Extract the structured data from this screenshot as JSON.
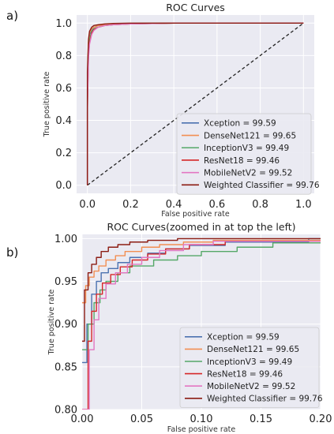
{
  "panels": [
    {
      "label": "a)"
    },
    {
      "label": "b)"
    }
  ],
  "legend_entries": [
    {
      "name": "Xception",
      "value": "99.59",
      "color": "#4c72b0"
    },
    {
      "name": "DenseNet121",
      "value": "99.65",
      "color": "#f28e52"
    },
    {
      "name": "InceptionV3",
      "value": "99.49",
      "color": "#55a868"
    },
    {
      "name": "ResNet18",
      "value": "99.46",
      "color": "#d62728"
    },
    {
      "name": "MobileNetV2",
      "value": "99.52",
      "color": "#e377c2"
    },
    {
      "name": "Weighted Classifier",
      "value": "99.76",
      "color": "#8c1c13"
    }
  ],
  "chart_data": [
    {
      "type": "line",
      "title": "ROC Curves",
      "xlabel": "False positive rate",
      "ylabel": "True positive rate",
      "xlim": [
        -0.05,
        1.05
      ],
      "ylim": [
        -0.05,
        1.05
      ],
      "xticks": [
        0.0,
        0.2,
        0.4,
        0.6,
        0.8,
        1.0
      ],
      "yticks": [
        0.0,
        0.2,
        0.4,
        0.6,
        0.8,
        1.0
      ],
      "xtick_labels": [
        "0.0",
        "0.2",
        "0.4",
        "0.6",
        "0.8",
        "1.0"
      ],
      "ytick_labels": [
        "0.0",
        "0.2",
        "0.4",
        "0.6",
        "0.8",
        "1.0"
      ],
      "grid": true,
      "legend_position": "lower-right",
      "diagonal": {
        "x": [
          0,
          1
        ],
        "y": [
          0,
          1
        ],
        "style": "dashed",
        "color": "#222222"
      },
      "series": [
        {
          "name": "Xception = 99.59",
          "color": "#4c72b0",
          "x": [
            0,
            0,
            0.005,
            0.01,
            0.02,
            0.03,
            0.05,
            0.08,
            0.12,
            0.2,
            0.4,
            1.0
          ],
          "y": [
            0,
            0.6,
            0.85,
            0.93,
            0.96,
            0.975,
            0.985,
            0.99,
            0.995,
            0.998,
            1.0,
            1.0
          ]
        },
        {
          "name": "DenseNet121 = 99.65",
          "color": "#f28e52",
          "x": [
            0,
            0,
            0.005,
            0.01,
            0.02,
            0.03,
            0.05,
            0.08,
            0.12,
            0.2,
            0.4,
            1.0
          ],
          "y": [
            0,
            0.65,
            0.88,
            0.94,
            0.965,
            0.975,
            0.985,
            0.99,
            0.995,
            0.998,
            1.0,
            1.0
          ]
        },
        {
          "name": "InceptionV3 = 99.49",
          "color": "#55a868",
          "x": [
            0,
            0,
            0.005,
            0.01,
            0.02,
            0.03,
            0.05,
            0.08,
            0.12,
            0.2,
            0.4,
            1.0
          ],
          "y": [
            0,
            0.55,
            0.82,
            0.9,
            0.95,
            0.965,
            0.975,
            0.985,
            0.99,
            0.995,
            1.0,
            1.0
          ]
        },
        {
          "name": "ResNet18 = 99.46",
          "color": "#d62728",
          "x": [
            0,
            0,
            0.005,
            0.01,
            0.02,
            0.03,
            0.05,
            0.08,
            0.12,
            0.2,
            0.4,
            1.0
          ],
          "y": [
            0,
            0.45,
            0.8,
            0.88,
            0.94,
            0.96,
            0.975,
            0.985,
            0.99,
            0.995,
            1.0,
            1.0
          ]
        },
        {
          "name": "MobileNetV2 = 99.52",
          "color": "#e377c2",
          "x": [
            0,
            0,
            0.005,
            0.01,
            0.02,
            0.03,
            0.05,
            0.08,
            0.12,
            0.2,
            0.4,
            1.0
          ],
          "y": [
            0,
            0.5,
            0.78,
            0.87,
            0.93,
            0.955,
            0.975,
            0.985,
            0.99,
            0.995,
            1.0,
            1.0
          ]
        },
        {
          "name": "Weighted Classifier = 99.76",
          "color": "#8c1c13",
          "x": [
            0,
            0,
            0.005,
            0.01,
            0.02,
            0.03,
            0.05,
            0.08,
            0.12,
            0.2,
            0.4,
            1.0
          ],
          "y": [
            0,
            0.7,
            0.9,
            0.95,
            0.975,
            0.985,
            0.99,
            0.995,
            0.998,
            1.0,
            1.0,
            1.0
          ]
        }
      ]
    },
    {
      "type": "line",
      "title": "ROC Curves(zoomed in at top the left)",
      "xlabel": "False positive rate",
      "ylabel": "True positive rate",
      "xlim": [
        0.0,
        0.2
      ],
      "ylim": [
        0.8,
        1.005
      ],
      "xticks": [
        0.0,
        0.05,
        0.1,
        0.15,
        0.2
      ],
      "yticks": [
        0.8,
        0.85,
        0.9,
        0.95,
        1.0
      ],
      "xtick_labels": [
        "0.00",
        "0.05",
        "0.10",
        "0.15",
        "0.20"
      ],
      "ytick_labels": [
        "0.80",
        "0.85",
        "0.90",
        "0.95",
        "1.00"
      ],
      "grid": true,
      "legend_position": "lower-right",
      "series": [
        {
          "name": "Xception = 99.59",
          "color": "#4c72b0",
          "x": [
            0.0,
            0.004,
            0.004,
            0.008,
            0.008,
            0.012,
            0.012,
            0.016,
            0.016,
            0.022,
            0.022,
            0.03,
            0.03,
            0.04,
            0.04,
            0.055,
            0.055,
            0.07,
            0.07,
            0.09,
            0.09,
            0.12,
            0.12,
            0.19,
            0.19,
            0.2
          ],
          "y": [
            0.855,
            0.855,
            0.9,
            0.9,
            0.935,
            0.935,
            0.95,
            0.95,
            0.96,
            0.96,
            0.965,
            0.965,
            0.972,
            0.972,
            0.978,
            0.978,
            0.983,
            0.983,
            0.988,
            0.988,
            0.992,
            0.992,
            0.996,
            0.996,
            1.0,
            1.0
          ]
        },
        {
          "name": "DenseNet121 = 99.65",
          "color": "#f28e52",
          "x": [
            0.0,
            0.003,
            0.003,
            0.006,
            0.006,
            0.01,
            0.01,
            0.014,
            0.014,
            0.02,
            0.02,
            0.028,
            0.028,
            0.036,
            0.036,
            0.05,
            0.05,
            0.065,
            0.065,
            0.085,
            0.085,
            0.11,
            0.11,
            0.2
          ],
          "y": [
            0.925,
            0.925,
            0.945,
            0.945,
            0.955,
            0.955,
            0.962,
            0.962,
            0.968,
            0.968,
            0.975,
            0.975,
            0.98,
            0.98,
            0.985,
            0.985,
            0.99,
            0.99,
            0.993,
            0.993,
            0.996,
            0.996,
            0.998,
            0.998
          ]
        },
        {
          "name": "InceptionV3 = 99.49",
          "color": "#55a868",
          "x": [
            0.0,
            0.005,
            0.005,
            0.01,
            0.01,
            0.015,
            0.015,
            0.02,
            0.02,
            0.03,
            0.03,
            0.04,
            0.04,
            0.06,
            0.06,
            0.08,
            0.08,
            0.1,
            0.1,
            0.13,
            0.13,
            0.16,
            0.16,
            0.2
          ],
          "y": [
            0.87,
            0.87,
            0.9,
            0.9,
            0.925,
            0.925,
            0.94,
            0.94,
            0.95,
            0.95,
            0.96,
            0.96,
            0.968,
            0.968,
            0.975,
            0.975,
            0.98,
            0.98,
            0.985,
            0.985,
            0.99,
            0.99,
            0.995,
            0.995
          ]
        },
        {
          "name": "ResNet18 = 99.46",
          "color": "#d62728",
          "x": [
            0.0,
            0.005,
            0.005,
            0.008,
            0.008,
            0.012,
            0.012,
            0.017,
            0.017,
            0.024,
            0.024,
            0.032,
            0.032,
            0.042,
            0.042,
            0.055,
            0.055,
            0.07,
            0.07,
            0.09,
            0.09,
            0.12,
            0.12,
            0.2
          ],
          "y": [
            0.8,
            0.8,
            0.88,
            0.88,
            0.915,
            0.915,
            0.935,
            0.935,
            0.948,
            0.948,
            0.958,
            0.958,
            0.967,
            0.967,
            0.975,
            0.975,
            0.982,
            0.982,
            0.988,
            0.988,
            0.993,
            0.993,
            0.997,
            0.997
          ]
        },
        {
          "name": "MobileNetV2 = 99.52",
          "color": "#e377c2",
          "x": [
            0.0,
            0.006,
            0.006,
            0.01,
            0.01,
            0.014,
            0.014,
            0.02,
            0.02,
            0.028,
            0.028,
            0.038,
            0.038,
            0.05,
            0.05,
            0.065,
            0.065,
            0.085,
            0.085,
            0.11,
            0.11,
            0.2
          ],
          "y": [
            0.8,
            0.8,
            0.87,
            0.87,
            0.905,
            0.905,
            0.93,
            0.93,
            0.947,
            0.947,
            0.96,
            0.96,
            0.97,
            0.97,
            0.978,
            0.978,
            0.986,
            0.986,
            0.993,
            0.993,
            0.997,
            0.997
          ]
        },
        {
          "name": "Weighted Classifier = 99.76",
          "color": "#8c1c13",
          "x": [
            0.0,
            0.002,
            0.002,
            0.005,
            0.005,
            0.008,
            0.008,
            0.012,
            0.012,
            0.016,
            0.016,
            0.022,
            0.022,
            0.03,
            0.03,
            0.04,
            0.04,
            0.055,
            0.055,
            0.08,
            0.08,
            0.2
          ],
          "y": [
            0.88,
            0.88,
            0.94,
            0.94,
            0.96,
            0.96,
            0.97,
            0.97,
            0.978,
            0.978,
            0.985,
            0.985,
            0.99,
            0.99,
            0.993,
            0.993,
            0.996,
            0.996,
            0.998,
            0.998,
            1.0,
            1.0
          ]
        }
      ]
    }
  ]
}
